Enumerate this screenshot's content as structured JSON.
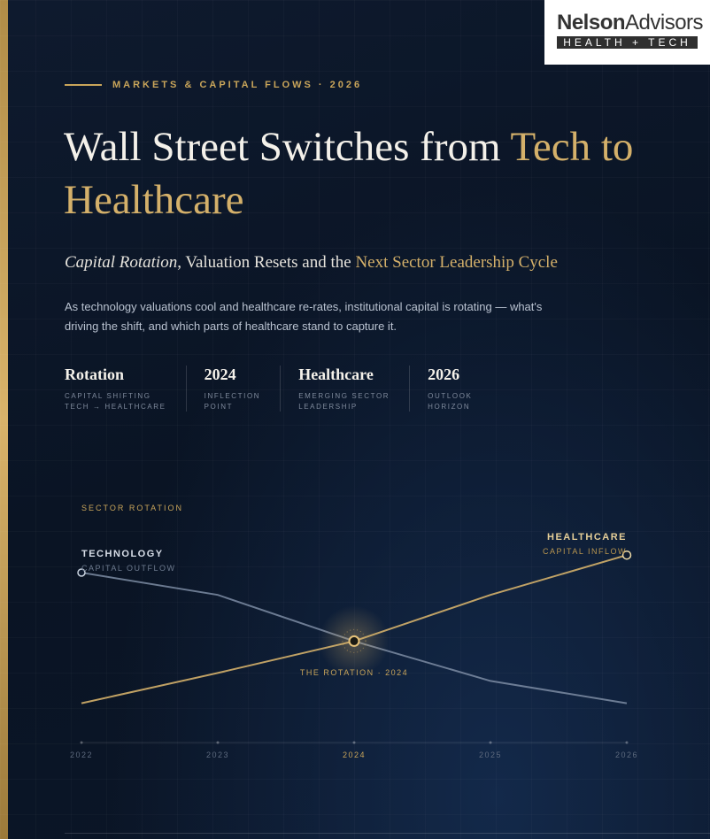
{
  "logo": {
    "name_bold": "Nelson",
    "name_light": "Advisors",
    "tagline": "HEALTH + TECH"
  },
  "kicker": "MARKETS & CAPITAL FLOWS · 2026",
  "title": {
    "plain": "Wall Street Switches from ",
    "accent": "Tech to Healthcare"
  },
  "subtitle": {
    "italic": "Capital Rotation",
    "plain": ", Valuation Resets and the ",
    "accent": "Next Sector Leadership Cycle"
  },
  "description": "As technology valuations cool and healthcare re-rates, institutional capital is rotating — what's driving the shift, and which parts of healthcare stand to capture it.",
  "stats": [
    {
      "value": "Rotation",
      "lines": [
        "CAPITAL SHIFTING",
        "TECH → HEALTHCARE"
      ]
    },
    {
      "value": "2024",
      "lines": [
        "INFLECTION",
        "POINT"
      ]
    },
    {
      "value": "Healthcare",
      "lines": [
        "EMERGING SECTOR",
        "LEADERSHIP"
      ]
    },
    {
      "value": "2026",
      "lines": [
        "OUTLOOK",
        "HORIZON"
      ]
    }
  ],
  "chart_data": {
    "type": "line",
    "title": "SECTOR ROTATION",
    "categories": [
      "2022",
      "2023",
      "2024",
      "2025",
      "2026"
    ],
    "ylim": [
      0,
      100
    ],
    "highlight_category": "2024",
    "annotation": "THE ROTATION · 2024",
    "series": [
      {
        "name": "TECHNOLOGY",
        "sublabel": "CAPITAL OUTFLOW",
        "color": "#7d8ca3",
        "values": [
          85,
          71,
          42,
          17,
          3
        ]
      },
      {
        "name": "HEALTHCARE",
        "sublabel": "CAPITAL INFLOW",
        "color": "#d4b06a",
        "values": [
          3,
          22,
          42,
          71,
          96
        ]
      }
    ]
  }
}
